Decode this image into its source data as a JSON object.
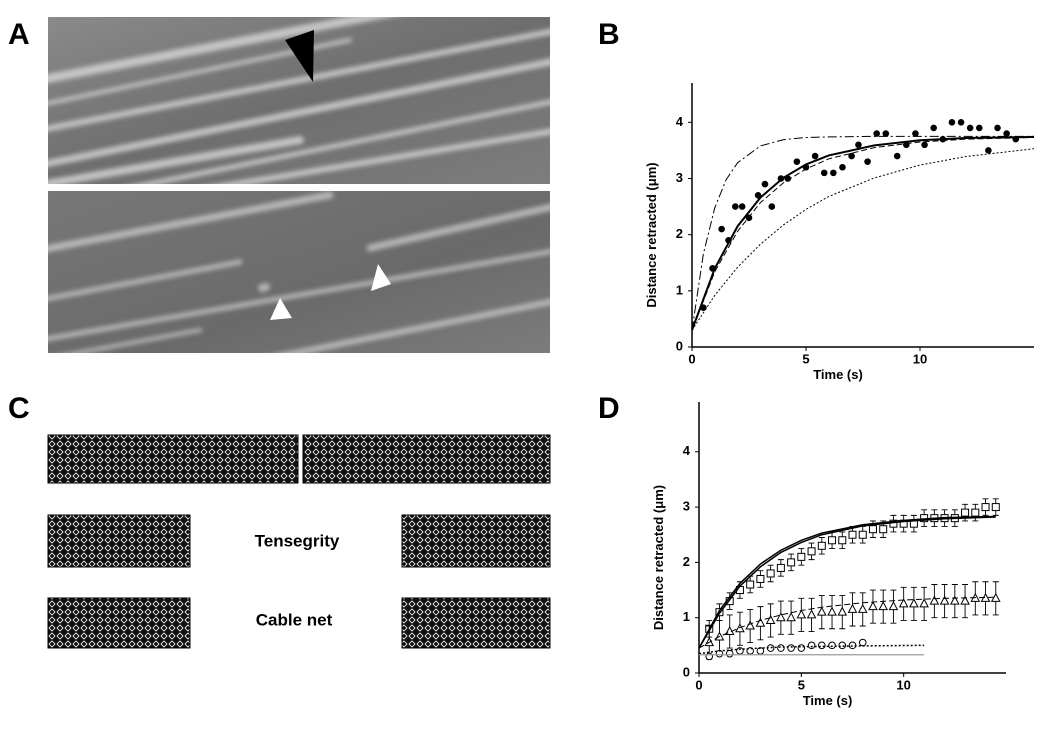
{
  "panels": [
    "A",
    "B",
    "C",
    "D"
  ],
  "diagram": {
    "labels": [
      "Tensegrity",
      "Cable net"
    ]
  },
  "chart_data": [
    {
      "type": "scatter",
      "x_label": "Time (s)",
      "y_label": "Distance retracted (μm)",
      "xlim": [
        0,
        15
      ],
      "ylim": [
        0,
        4.7
      ],
      "xticks": [
        0,
        5,
        10
      ],
      "yticks": [
        0,
        1,
        2,
        3,
        4
      ],
      "series": [
        {
          "marker": "filled-circle",
          "color": "#000000",
          "x": [
            0.5,
            0.9,
            1.3,
            1.6,
            1.9,
            2.2,
            2.5,
            2.9,
            3.2,
            3.5,
            3.9,
            4.2,
            4.6,
            5.0,
            5.4,
            5.8,
            6.2,
            6.6,
            7.0,
            7.3,
            7.7,
            8.1,
            8.5,
            9.0,
            9.4,
            9.8,
            10.2,
            10.6,
            11.0,
            11.4,
            11.8,
            12.2,
            12.6,
            13.0,
            13.4,
            13.8,
            14.2
          ],
          "values": [
            0.7,
            1.4,
            2.1,
            1.9,
            2.5,
            2.5,
            2.3,
            2.7,
            2.9,
            2.5,
            3.0,
            3.0,
            3.3,
            3.2,
            3.4,
            3.1,
            3.1,
            3.2,
            3.4,
            3.6,
            3.3,
            3.8,
            3.8,
            3.4,
            3.6,
            3.8,
            3.6,
            3.9,
            3.7,
            4.0,
            4.0,
            3.9,
            3.9,
            3.5,
            3.9,
            3.8,
            3.7
          ]
        },
        {
          "dash": "solid",
          "color": "#000000",
          "width": 2,
          "x": [
            0,
            1,
            2,
            3,
            4,
            5,
            6,
            8,
            10,
            12,
            15
          ],
          "values": [
            0.3,
            1.4,
            2.15,
            2.66,
            3.01,
            3.25,
            3.41,
            3.59,
            3.68,
            3.72,
            3.74
          ]
        },
        {
          "dash": "dashed",
          "color": "#000000",
          "width": 1,
          "x": [
            0,
            1,
            2,
            3,
            4,
            5,
            6,
            8,
            10,
            12,
            15
          ],
          "values": [
            0.3,
            1.34,
            2.06,
            2.57,
            2.92,
            3.17,
            3.35,
            3.55,
            3.65,
            3.7,
            3.73
          ]
        },
        {
          "dash": "dashdot",
          "color": "#000000",
          "width": 1,
          "x": [
            0,
            0.5,
            1,
            1.5,
            2,
            3,
            4,
            5,
            6,
            8,
            10,
            12,
            15
          ],
          "values": [
            0.3,
            1.66,
            2.48,
            2.98,
            3.28,
            3.58,
            3.69,
            3.73,
            3.74,
            3.75,
            3.75,
            3.75,
            3.75
          ]
        },
        {
          "dash": "dotted",
          "color": "#000000",
          "width": 1,
          "x": [
            0,
            1,
            2,
            3,
            4,
            5,
            6,
            8,
            10,
            12,
            15
          ],
          "values": [
            0.3,
            0.92,
            1.42,
            1.83,
            2.17,
            2.45,
            2.68,
            3.01,
            3.24,
            3.39,
            3.53
          ]
        }
      ]
    },
    {
      "type": "scatter",
      "x_label": "Time (s)",
      "y_label": "Distance retracted (μm)",
      "xlim": [
        0,
        15
      ],
      "ylim": [
        0,
        4.9
      ],
      "xticks": [
        0,
        5,
        10
      ],
      "yticks": [
        0,
        1,
        2,
        3,
        4
      ],
      "series": [
        {
          "marker": "open-square",
          "color": "#000000",
          "x": [
            0.5,
            1,
            1.5,
            2,
            2.5,
            3,
            3.5,
            4,
            4.5,
            5,
            5.5,
            6,
            6.5,
            7,
            7.5,
            8,
            8.5,
            9,
            9.5,
            10,
            10.5,
            11,
            11.5,
            12,
            12.5,
            13,
            13.5,
            14,
            14.5
          ],
          "values": [
            0.8,
            1.1,
            1.3,
            1.5,
            1.6,
            1.7,
            1.8,
            1.9,
            2.0,
            2.1,
            2.2,
            2.3,
            2.4,
            2.4,
            2.5,
            2.5,
            2.6,
            2.6,
            2.7,
            2.7,
            2.7,
            2.8,
            2.8,
            2.8,
            2.8,
            2.9,
            2.9,
            3.0,
            3.0
          ],
          "errors": [
            0.15,
            0.15,
            0.15,
            0.15,
            0.15,
            0.15,
            0.15,
            0.15,
            0.15,
            0.15,
            0.15,
            0.15,
            0.15,
            0.15,
            0.15,
            0.15,
            0.15,
            0.15,
            0.15,
            0.15,
            0.15,
            0.15,
            0.15,
            0.15,
            0.15,
            0.15,
            0.15,
            0.15,
            0.15
          ]
        },
        {
          "marker": "open-triangle",
          "color": "#000000",
          "x": [
            0.5,
            1,
            1.5,
            2,
            2.5,
            3,
            3.5,
            4,
            4.5,
            5,
            5.5,
            6,
            6.5,
            7,
            7.5,
            8,
            8.5,
            9,
            9.5,
            10,
            10.5,
            11,
            11.5,
            12,
            12.5,
            13,
            13.5,
            14,
            14.5
          ],
          "values": [
            0.55,
            0.65,
            0.75,
            0.8,
            0.85,
            0.9,
            0.95,
            1.0,
            1.0,
            1.05,
            1.05,
            1.1,
            1.1,
            1.1,
            1.15,
            1.15,
            1.2,
            1.2,
            1.2,
            1.25,
            1.25,
            1.25,
            1.3,
            1.3,
            1.3,
            1.3,
            1.35,
            1.35,
            1.35
          ],
          "errors": [
            0.3,
            0.3,
            0.3,
            0.3,
            0.3,
            0.3,
            0.3,
            0.3,
            0.3,
            0.3,
            0.3,
            0.3,
            0.3,
            0.3,
            0.3,
            0.3,
            0.3,
            0.3,
            0.3,
            0.3,
            0.3,
            0.3,
            0.3,
            0.3,
            0.3,
            0.3,
            0.3,
            0.3,
            0.3
          ]
        },
        {
          "marker": "open-circle",
          "color": "#000000",
          "x": [
            0.5,
            1,
            1.5,
            2,
            2.5,
            3,
            3.5,
            4,
            4.5,
            5,
            5.5,
            6,
            6.5,
            7,
            7.5,
            8
          ],
          "values": [
            0.3,
            0.35,
            0.35,
            0.4,
            0.4,
            0.4,
            0.45,
            0.45,
            0.45,
            0.45,
            0.5,
            0.5,
            0.5,
            0.5,
            0.5,
            0.55
          ]
        },
        {
          "dash": "solid",
          "color": "#000000",
          "width": 1.5,
          "x": [
            0,
            1,
            2,
            3,
            4,
            5,
            6,
            8,
            10,
            12,
            14.5
          ],
          "values": [
            0.45,
            1.13,
            1.62,
            1.97,
            2.22,
            2.4,
            2.53,
            2.68,
            2.76,
            2.81,
            2.83
          ]
        },
        {
          "dash": "solid",
          "color": "#000000",
          "width": 1.5,
          "x": [
            0,
            1,
            2,
            3,
            4,
            5,
            6,
            8,
            10,
            12,
            14.5
          ],
          "values": [
            0.45,
            1.08,
            1.57,
            1.92,
            2.18,
            2.36,
            2.5,
            2.66,
            2.74,
            2.79,
            2.82
          ]
        },
        {
          "dash": "dashed",
          "color": "#000000",
          "width": 1,
          "x": [
            0,
            1,
            2,
            3,
            4,
            5,
            6,
            8,
            10,
            12,
            14.5
          ],
          "values": [
            0.45,
            0.66,
            0.82,
            0.95,
            1.05,
            1.13,
            1.19,
            1.27,
            1.32,
            1.35,
            1.37
          ]
        },
        {
          "dash": "dotted",
          "color": "#000000",
          "width": 1.5,
          "x": [
            0,
            1,
            2,
            3,
            4,
            6,
            8,
            11
          ],
          "values": [
            0.35,
            0.4,
            0.43,
            0.45,
            0.47,
            0.48,
            0.49,
            0.5
          ]
        },
        {
          "dash": "solid",
          "color": "#999999",
          "width": 1.2,
          "x": [
            0,
            11
          ],
          "values": [
            0.33,
            0.33
          ]
        }
      ]
    }
  ]
}
